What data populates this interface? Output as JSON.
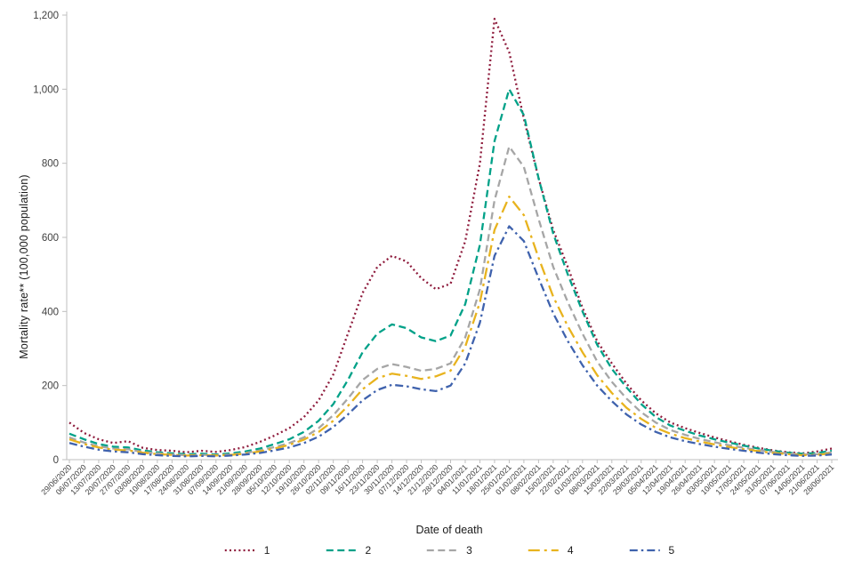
{
  "chart_data": {
    "type": "line",
    "title": "",
    "xlabel": "Date of death",
    "ylabel": "Mortality rate** (100,000 population)",
    "ylim": [
      0,
      1200
    ],
    "ytick_interval": 200,
    "ytick_labels": [
      "0",
      "200",
      "400",
      "600",
      "800",
      "1,000",
      "1,200"
    ],
    "grid": false,
    "legend_position": "bottom",
    "categories": [
      "29/06/2020",
      "06/07/2020",
      "13/07/2020",
      "20/07/2020",
      "27/07/2020",
      "03/08/2020",
      "10/08/2020",
      "17/08/2020",
      "24/08/2020",
      "31/08/2020",
      "07/09/2020",
      "14/09/2020",
      "21/09/2020",
      "28/09/2020",
      "05/10/2020",
      "12/10/2020",
      "19/10/2020",
      "26/10/2020",
      "02/11/2020",
      "09/11/2020",
      "16/11/2020",
      "23/11/2020",
      "30/11/2020",
      "07/12/2020",
      "14/12/2020",
      "21/12/2020",
      "28/12/2020",
      "04/01/2021",
      "11/01/2021",
      "18/01/2021",
      "25/01/2021",
      "01/02/2021",
      "08/02/2021",
      "15/02/2021",
      "22/02/2021",
      "01/03/2021",
      "08/03/2021",
      "15/03/2021",
      "22/03/2021",
      "29/03/2021",
      "05/04/2021",
      "12/04/2021",
      "19/04/2021",
      "26/04/2021",
      "03/05/2021",
      "10/05/2021",
      "17/05/2021",
      "24/05/2021",
      "31/05/2021",
      "07/06/2021",
      "14/06/2021",
      "21/06/2021",
      "28/06/2021"
    ],
    "series": [
      {
        "name": "1",
        "color": "#8e1b3c",
        "style": "dotted",
        "values": [
          100,
          72,
          55,
          45,
          50,
          32,
          26,
          24,
          20,
          24,
          21,
          26,
          34,
          48,
          65,
          85,
          115,
          160,
          230,
          340,
          450,
          520,
          550,
          535,
          490,
          460,
          475,
          590,
          800,
          1190,
          1100,
          920,
          760,
          620,
          520,
          410,
          320,
          260,
          205,
          160,
          125,
          100,
          85,
          72,
          60,
          50,
          40,
          32,
          25,
          20,
          17,
          22,
          30
        ]
      },
      {
        "name": "2",
        "color": "#00a188",
        "style": "dashed",
        "values": [
          70,
          55,
          42,
          35,
          33,
          25,
          20,
          17,
          15,
          16,
          14,
          17,
          22,
          30,
          42,
          55,
          75,
          105,
          150,
          215,
          290,
          340,
          365,
          355,
          330,
          320,
          335,
          420,
          580,
          860,
          1000,
          930,
          760,
          610,
          500,
          400,
          310,
          245,
          195,
          150,
          115,
          92,
          78,
          65,
          55,
          46,
          38,
          30,
          24,
          19,
          16,
          18,
          24
        ]
      },
      {
        "name": "3",
        "color": "#a6a6a6",
        "style": "dashed",
        "values": [
          60,
          46,
          36,
          30,
          28,
          21,
          17,
          14,
          12,
          13,
          12,
          14,
          18,
          25,
          34,
          45,
          60,
          85,
          120,
          165,
          215,
          245,
          258,
          250,
          240,
          245,
          260,
          330,
          460,
          700,
          845,
          790,
          650,
          520,
          425,
          340,
          265,
          210,
          165,
          128,
          100,
          80,
          67,
          56,
          47,
          39,
          32,
          26,
          21,
          17,
          14,
          15,
          20
        ]
      },
      {
        "name": "4",
        "color": "#e8b31e",
        "style": "long-dash-dot",
        "values": [
          55,
          42,
          33,
          27,
          25,
          19,
          15,
          13,
          11,
          12,
          11,
          13,
          16,
          22,
          30,
          40,
          54,
          75,
          105,
          145,
          190,
          220,
          232,
          226,
          218,
          225,
          240,
          305,
          425,
          620,
          710,
          660,
          545,
          440,
          360,
          290,
          228,
          180,
          140,
          110,
          86,
          70,
          58,
          49,
          41,
          34,
          28,
          23,
          18,
          15,
          12,
          13,
          17
        ]
      },
      {
        "name": "5",
        "color": "#3f62ad",
        "style": "dash-dot",
        "values": [
          45,
          35,
          27,
          22,
          20,
          15,
          12,
          10,
          9,
          10,
          9,
          11,
          14,
          18,
          25,
          33,
          45,
          62,
          88,
          122,
          160,
          188,
          202,
          198,
          190,
          185,
          200,
          260,
          370,
          550,
          630,
          590,
          490,
          395,
          320,
          255,
          200,
          158,
          122,
          95,
          75,
          60,
          50,
          42,
          35,
          29,
          24,
          19,
          15,
          12,
          10,
          11,
          14
        ]
      }
    ]
  }
}
